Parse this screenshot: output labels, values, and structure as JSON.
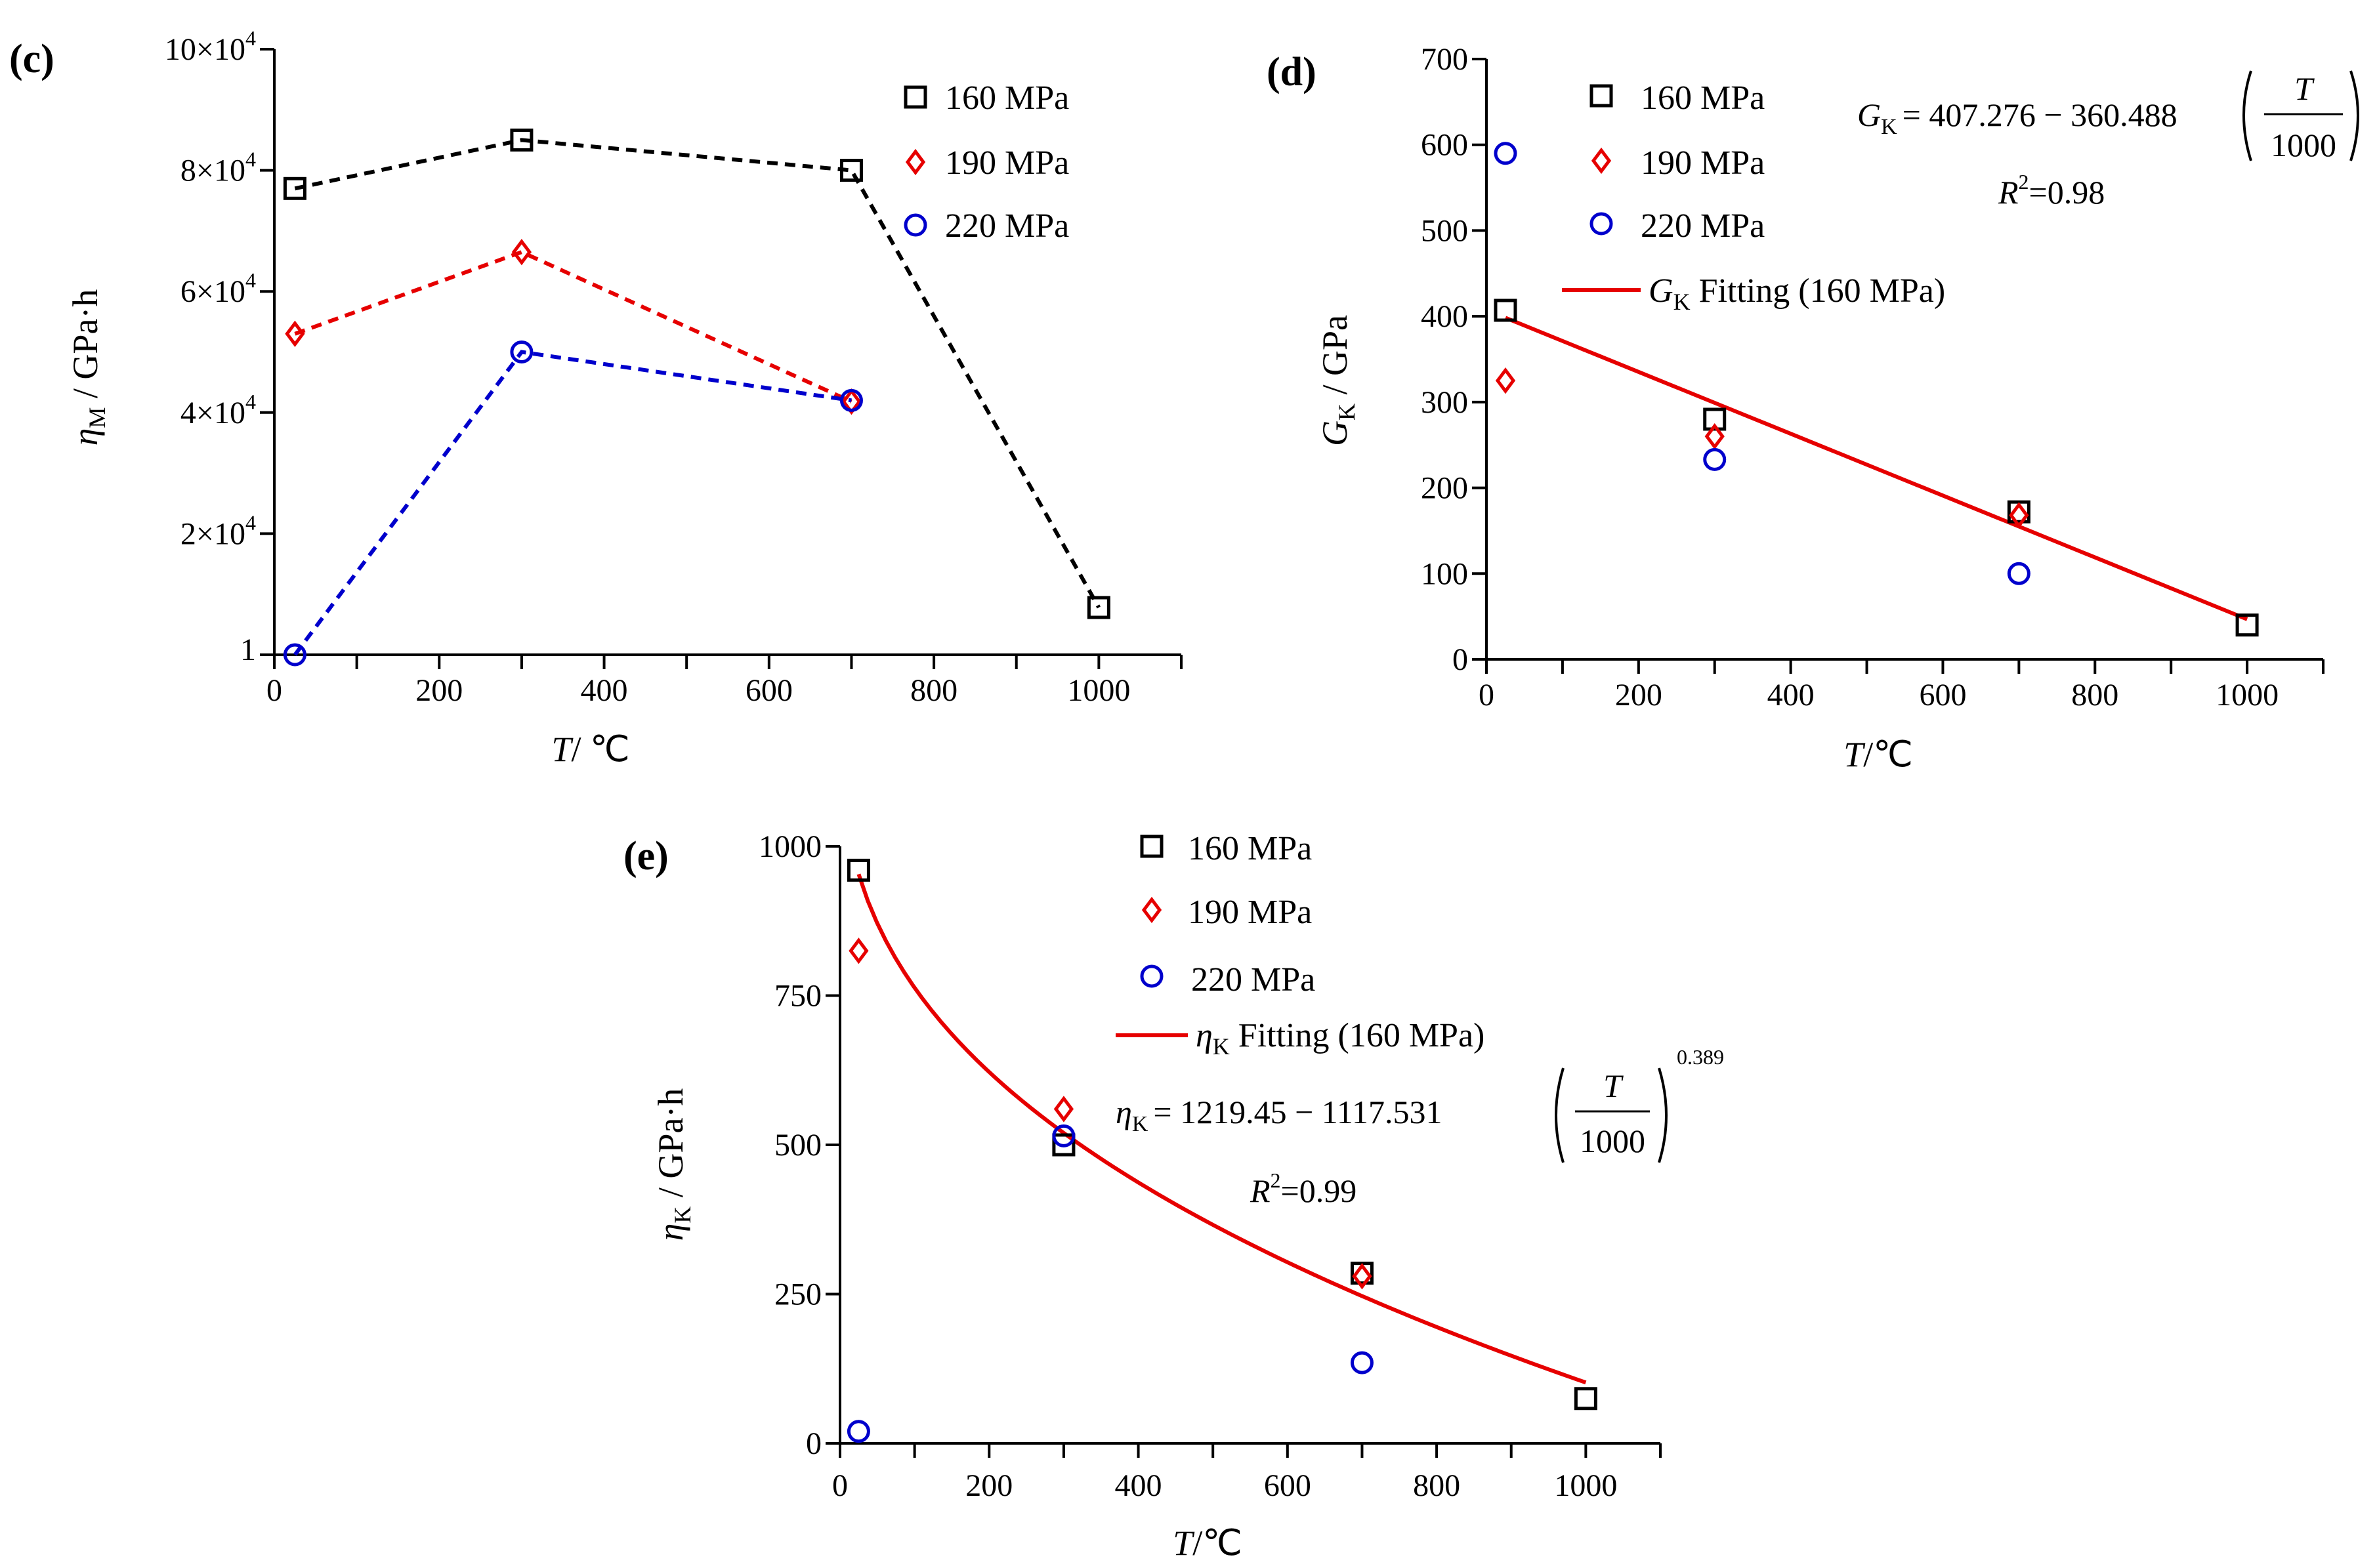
{
  "colors": {
    "s160": "#000000",
    "s190": "#e60000",
    "s220": "#0000cc",
    "fit": "#e60000"
  },
  "chart_data": [
    {
      "panel": "(c)",
      "type": "line",
      "xlabel": {
        "italic": "T",
        "text": "/  ℃"
      },
      "ylabel": {
        "main": "η",
        "sub": "M",
        "rest": " / GPa·h"
      },
      "xlim": [
        0,
        1100
      ],
      "ylim": [
        0,
        100000
      ],
      "xticks": [
        "0",
        "200",
        "400",
        "600",
        "800",
        "1000"
      ],
      "xtick_values": [
        0,
        200,
        400,
        600,
        800,
        1000
      ],
      "yticks": [
        {
          "label": "1",
          "value": 0,
          "base": "",
          "exp": ""
        },
        {
          "label": "2×10⁴",
          "value": 20000,
          "base": "2×10",
          "exp": "4"
        },
        {
          "label": "4×10⁴",
          "value": 40000,
          "base": "4×10",
          "exp": "4"
        },
        {
          "label": "6×10⁴",
          "value": 60000,
          "base": "6×10",
          "exp": "4"
        },
        {
          "label": "8×10⁴",
          "value": 80000,
          "base": "8×10",
          "exp": "4"
        },
        {
          "label": "10×10⁴",
          "value": 100000,
          "base": "10×10",
          "exp": "4"
        }
      ],
      "series": [
        {
          "name": "160 MPa",
          "marker": "square",
          "color": "#000000",
          "x": [
            25,
            300,
            700,
            1000
          ],
          "y": [
            77000,
            85000,
            80000,
            7800
          ]
        },
        {
          "name": "190 MPa",
          "marker": "diamond",
          "color": "#e60000",
          "x": [
            25,
            300,
            700
          ],
          "y": [
            53000,
            66500,
            41800
          ]
        },
        {
          "name": "220 MPa",
          "marker": "circle",
          "color": "#0000cc",
          "x": [
            25,
            300,
            700
          ],
          "y": [
            0,
            50000,
            42000
          ]
        }
      ]
    },
    {
      "panel": "(d)",
      "type": "scatter",
      "xlabel": {
        "italic": "T",
        "text": "/℃"
      },
      "ylabel": {
        "main": "G",
        "sub": "K",
        "rest": " / GPa"
      },
      "xlim": [
        0,
        1100
      ],
      "ylim": [
        0,
        700
      ],
      "xticks": [
        "0",
        "200",
        "400",
        "600",
        "800",
        "1000"
      ],
      "xtick_values": [
        0,
        200,
        400,
        600,
        800,
        1000
      ],
      "yticks": [
        "0",
        "100",
        "200",
        "300",
        "400",
        "500",
        "600",
        "700"
      ],
      "ytick_values": [
        0,
        100,
        200,
        300,
        400,
        500,
        600,
        700
      ],
      "series": [
        {
          "name": "160 MPa",
          "marker": "square",
          "color": "#000000",
          "x": [
            25,
            300,
            700,
            1000
          ],
          "y": [
            407,
            280,
            172,
            40
          ]
        },
        {
          "name": "190 MPa",
          "marker": "diamond",
          "color": "#e60000",
          "x": [
            25,
            300,
            700
          ],
          "y": [
            325,
            260,
            168
          ]
        },
        {
          "name": "220 MPa",
          "marker": "circle",
          "color": "#0000cc",
          "x": [
            25,
            300,
            700
          ],
          "y": [
            590,
            233,
            100
          ]
        }
      ],
      "fit": {
        "legend_main": "G",
        "legend_sub": "K",
        "legend_rest": " Fitting (160 MPa)",
        "model": "linear",
        "a": 407.276,
        "b": 360.488,
        "x_range": [
          25,
          1000
        ],
        "equation_lhs": "G",
        "equation_lhs_sub": "K",
        "equation_rhs": "= 407.276 − 360.488",
        "frac_num": "T",
        "frac_den": "1000",
        "r2_label": "R",
        "r2_exp": "2",
        "r2_value": "=0.98"
      }
    },
    {
      "panel": "(e)",
      "type": "scatter",
      "xlabel": {
        "italic": "T",
        "text": "/℃"
      },
      "ylabel": {
        "main": "η",
        "sub": "K",
        "rest": " / GPa·h"
      },
      "xlim": [
        0,
        1100
      ],
      "ylim": [
        0,
        1000
      ],
      "xticks": [
        "0",
        "200",
        "400",
        "600",
        "800",
        "1000"
      ],
      "xtick_values": [
        0,
        200,
        400,
        600,
        800,
        1000
      ],
      "yticks": [
        "0",
        "250",
        "500",
        "750",
        "1000"
      ],
      "ytick_values": [
        0,
        250,
        500,
        750,
        1000
      ],
      "series": [
        {
          "name": "160 MPa",
          "marker": "square",
          "color": "#000000",
          "x": [
            25,
            300,
            700,
            1000
          ],
          "y": [
            960,
            500,
            285,
            75
          ]
        },
        {
          "name": "190 MPa",
          "marker": "diamond",
          "color": "#e60000",
          "x": [
            25,
            300,
            700
          ],
          "y": [
            825,
            560,
            280
          ]
        },
        {
          "name": "220 MPa",
          "marker": "circle",
          "color": "#0000cc",
          "x": [
            25,
            300,
            700
          ],
          "y": [
            20,
            515,
            135
          ]
        }
      ],
      "fit": {
        "legend_main": "η",
        "legend_sub": "K",
        "legend_rest": " Fitting (160 MPa)",
        "model": "power",
        "a": 1219.45,
        "b": 1117.531,
        "p": 0.389,
        "x_range": [
          25,
          1000
        ],
        "equation_lhs": "η",
        "equation_lhs_sub": "K",
        "equation_rhs": "= 1219.45 − 1117.531",
        "frac_num": "T",
        "frac_den": "1000",
        "frac_exp": "0.389",
        "r2_label": "R",
        "r2_exp": "2",
        "r2_value": "=0.99"
      }
    }
  ]
}
